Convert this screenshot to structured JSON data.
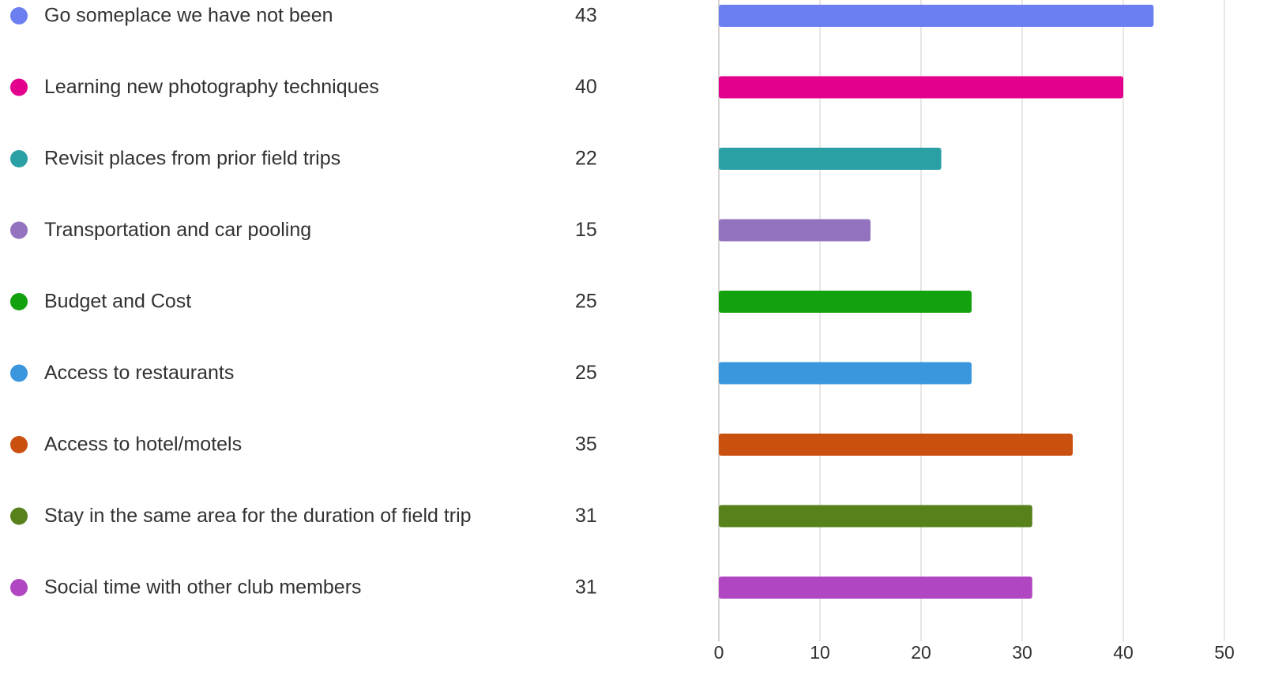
{
  "chart_data": {
    "type": "bar",
    "orientation": "horizontal",
    "categories": [
      "Go someplace we have not been",
      "Learning new photography techniques",
      "Revisit places from prior field trips",
      "Transportation and car pooling",
      "Budget and Cost",
      "Access to restaurants",
      "Access to hotel/motels",
      "Stay in the same area for the duration of field trip",
      "Social time with other club members"
    ],
    "values": [
      43,
      40,
      22,
      15,
      25,
      25,
      35,
      31,
      31
    ],
    "colors": [
      "#6b7ff0",
      "#e3008c",
      "#2aa0a4",
      "#9373c0",
      "#13a10e",
      "#3a96dd",
      "#ca5010",
      "#57811b",
      "#b146c2"
    ],
    "xlim": [
      0,
      50
    ],
    "xticks": [
      0,
      10,
      20,
      30,
      40,
      50
    ],
    "grid": true
  }
}
